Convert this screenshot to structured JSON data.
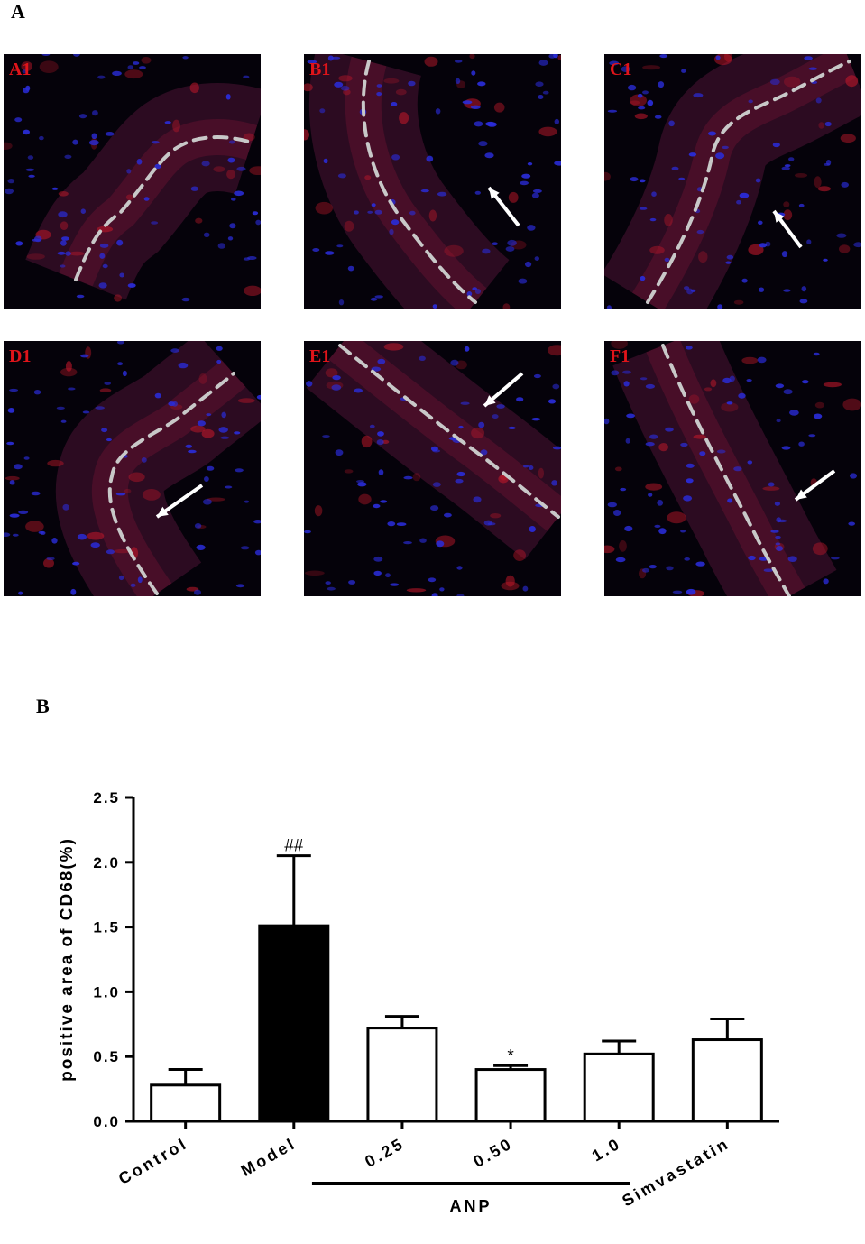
{
  "figure": {
    "panel_a_label": "A",
    "panel_b_label": "B"
  },
  "micrographs": [
    {
      "label": "A1"
    },
    {
      "label": "B1"
    },
    {
      "label": "C1"
    },
    {
      "label": "D1"
    },
    {
      "label": "E1"
    },
    {
      "label": "F1"
    }
  ],
  "colors": {
    "nuclei": "#2a2cd8",
    "stain": "#c0182a",
    "label": "#e0141a",
    "tissue": "#3a0f2a",
    "dashed_line": "#c8c8c8"
  },
  "chart_data": {
    "type": "bar",
    "categories": [
      "Control",
      "Model",
      "0.25",
      "0.50",
      "1.0",
      "Simvastatin"
    ],
    "values": [
      0.28,
      1.51,
      0.72,
      0.4,
      0.52,
      0.63
    ],
    "errors": [
      0.12,
      0.54,
      0.09,
      0.03,
      0.1,
      0.16
    ],
    "fills": [
      "#ffffff",
      "#000000",
      "#ffffff",
      "#ffffff",
      "#ffffff",
      "#ffffff"
    ],
    "annotations": [
      "",
      "##",
      "",
      "*",
      "",
      ""
    ],
    "ylabel": "positive area of CD68(%)",
    "xlabel": "",
    "ylim": [
      0,
      2.5
    ],
    "yticks": [
      "0.0",
      "0.5",
      "1.0",
      "1.5",
      "2.0",
      "2.5"
    ],
    "group_label": "ANP",
    "group_members": [
      "0.25",
      "0.50",
      "1.0"
    ],
    "grid": false
  }
}
